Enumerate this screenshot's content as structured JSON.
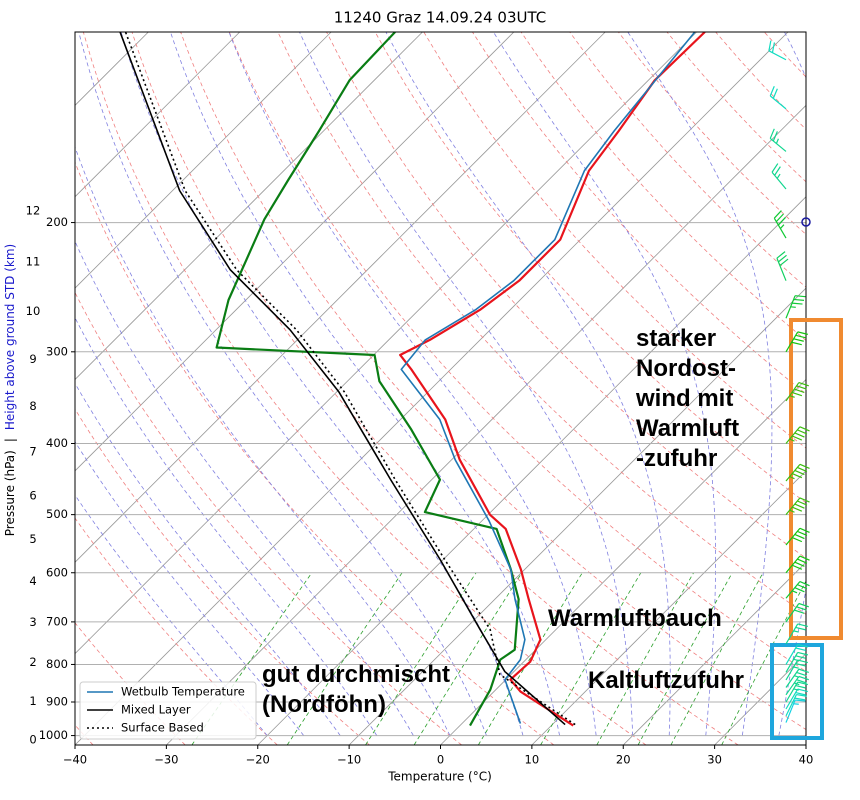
{
  "chart_data": {
    "type": "skewt",
    "title": "11240 Graz 14.09.24 03UTC",
    "x_label": "Temperature (°C)",
    "y_label": "Pressure (hPa)",
    "y_label_separator": "|",
    "y2_label": "Height above ground STD (km)",
    "xlim": [
      -40,
      40
    ],
    "xticks": [
      {
        "value": -40,
        "label": "−40"
      },
      {
        "value": -30,
        "label": "−30"
      },
      {
        "value": -20,
        "label": "−20"
      },
      {
        "value": -10,
        "label": "−10"
      },
      0,
      10,
      20,
      30,
      40
    ],
    "ylim": [
      1030,
      110
    ],
    "log_y": true,
    "yticks": [
      1000,
      900,
      800,
      700,
      600,
      500,
      400,
      300,
      200
    ],
    "height_ticks": [
      0,
      1,
      2,
      3,
      4,
      5,
      6,
      7,
      8,
      9,
      10,
      11,
      12
    ],
    "grid": true,
    "legend": "lower left",
    "series": [
      {
        "color": "#e8141c",
        "width": 2.2,
        "dash": "solid",
        "pressure": [
          969,
          871,
          839,
          793,
          740,
          652,
          594,
          523,
          500,
          421,
          371,
          317,
          303,
          289,
          263,
          240,
          211,
          170,
          150,
          128,
          110
        ],
        "values": [
          12.4,
          2.9,
          0.5,
          0.7,
          -0.6,
          -6.3,
          -10.4,
          -16.5,
          -19.8,
          -29.1,
          -35.1,
          -44.3,
          -47.1,
          -45.5,
          -43.3,
          -42.2,
          -42.2,
          -46.6,
          -47.7,
          -49.3,
          -49.1
        ]
      },
      {
        "color": "#0a7d14",
        "width": 2.2,
        "dash": "solid",
        "pressure": [
          969,
          866,
          788,
          764,
          652,
          594,
          523,
          496,
          448,
          383,
          329,
          303,
          296,
          255,
          198,
          175,
          150,
          128,
          110
        ],
        "values": [
          1.1,
          -0.6,
          -2.8,
          -2.3,
          -7.4,
          -11.5,
          -17.5,
          -27.2,
          -29.1,
          -37.7,
          -46.5,
          -49.9,
          -68.0,
          -71.9,
          -76.8,
          -78.5,
          -80.5,
          -82.7,
          -83.0
        ]
      },
      {
        "name": "Wetbulb Temperature",
        "color": "#1f77b4",
        "width": 1.6,
        "dash": "solid",
        "pressure": [
          963,
          839,
          788,
          740,
          652,
          594,
          510,
          421,
          371,
          317,
          289,
          263,
          240,
          211,
          170,
          150,
          110
        ],
        "values": [
          6.4,
          -0.1,
          -0.6,
          -2.3,
          -7.8,
          -11.5,
          -19.2,
          -29.6,
          -35.7,
          -45.4,
          -46.0,
          -43.8,
          -42.8,
          -42.8,
          -47.1,
          -48.2,
          -50.2
        ]
      },
      {
        "name": "Mixed Layer",
        "color": "#000000",
        "width": 1.6,
        "dash": "solid",
        "pressure": [
          966,
          818,
          717,
          576,
          448,
          340,
          280,
          232,
          181,
          110
        ],
        "values": [
          11.4,
          -1.0,
          -8.3,
          -20.3,
          -34.5,
          -49.8,
          -61.9,
          -75.0,
          -89.2,
          -113.1
        ]
      },
      {
        "name": "Surface Based",
        "color": "#000000",
        "width": 1.6,
        "dash": "dotted",
        "pressure": [
          966,
          826,
          717,
          576,
          448,
          340,
          280,
          232,
          181,
          110
        ],
        "values": [
          12.5,
          -1.2,
          -7.2,
          -19.8,
          -34.0,
          -49.2,
          -61.2,
          -74.3,
          -88.6,
          -112.5
        ]
      }
    ],
    "winds": {
      "pressure": [
        960,
        940,
        920,
        900,
        880,
        860,
        840,
        820,
        800,
        750,
        700,
        650,
        600,
        550,
        500,
        450,
        400,
        350,
        300,
        270,
        240,
        210,
        180,
        160,
        140,
        120
      ],
      "direction": [
        30,
        35,
        40,
        40,
        45,
        45,
        40,
        40,
        40,
        40,
        45,
        50,
        50,
        50,
        50,
        50,
        50,
        45,
        40,
        30,
        330,
        320,
        310,
        300,
        300,
        290
      ],
      "speed": [
        15,
        20,
        20,
        25,
        25,
        25,
        25,
        25,
        20,
        25,
        30,
        35,
        40,
        40,
        45,
        45,
        45,
        45,
        40,
        35,
        30,
        35,
        25,
        25,
        20,
        20
      ]
    },
    "annotations": [
      {
        "lines": [
          "starker",
          "Nordost-",
          "wind mit",
          "Warmluft",
          "-zufuhr"
        ],
        "color": "#f08a30"
      },
      {
        "lines": [
          "Warmluftbauch"
        ],
        "color": "#9b4da0"
      },
      {
        "lines": [
          "Kaltluftzufuhr"
        ],
        "color": "#1aa0d8"
      },
      {
        "lines": [
          "gut durchmischt",
          "(Nordföhn)"
        ],
        "color": "#000000"
      }
    ]
  }
}
